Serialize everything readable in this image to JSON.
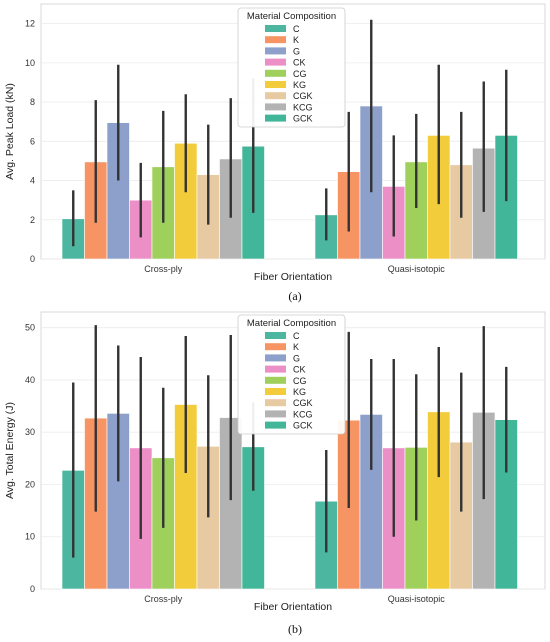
{
  "chart_data": [
    {
      "type": "bar",
      "panel_label": "(a)",
      "xlabel": "Fiber Orientation",
      "ylabel": "Avg. Peak Load (kN)",
      "ylim": [
        0,
        13
      ],
      "yticks": [
        0,
        2,
        4,
        6,
        8,
        10,
        12
      ],
      "grid": "horizontal",
      "legend_title": "Material Composition",
      "legend_position": "top-center",
      "categories": [
        "Cross-ply",
        "Quasi-isotopic"
      ],
      "series": [
        {
          "name": "C",
          "color": "#4DB6A0",
          "values": [
            2.05,
            2.25
          ],
          "error_low": [
            0.65,
            0.95
          ],
          "error_high": [
            3.5,
            3.6
          ]
        },
        {
          "name": "K",
          "color": "#F79464",
          "values": [
            4.95,
            4.45
          ],
          "error_low": [
            1.85,
            1.4
          ],
          "error_high": [
            8.1,
            7.5
          ]
        },
        {
          "name": "G",
          "color": "#8DA0CB",
          "values": [
            6.95,
            7.8
          ],
          "error_low": [
            4.0,
            3.4
          ],
          "error_high": [
            9.9,
            12.2
          ]
        },
        {
          "name": "CK",
          "color": "#EC8FC7",
          "values": [
            3.0,
            3.7
          ],
          "error_low": [
            1.1,
            1.15
          ],
          "error_high": [
            4.9,
            6.3
          ]
        },
        {
          "name": "CG",
          "color": "#9FD05B",
          "values": [
            4.7,
            4.95
          ],
          "error_low": [
            1.85,
            2.6
          ],
          "error_high": [
            7.55,
            7.4
          ]
        },
        {
          "name": "KG",
          "color": "#F2CC3A",
          "values": [
            5.9,
            6.3
          ],
          "error_low": [
            3.4,
            2.8
          ],
          "error_high": [
            8.4,
            9.9
          ]
        },
        {
          "name": "CGK",
          "color": "#E7C9A2",
          "values": [
            4.3,
            4.8
          ],
          "error_low": [
            1.75,
            2.1
          ],
          "error_high": [
            6.85,
            7.5
          ]
        },
        {
          "name": "KCG",
          "color": "#B3B3B3",
          "values": [
            5.1,
            5.65
          ],
          "error_low": [
            2.1,
            2.4
          ],
          "error_high": [
            8.2,
            9.05
          ]
        },
        {
          "name": "GCK",
          "color": "#42B698",
          "values": [
            5.75,
            6.3
          ],
          "error_low": [
            2.35,
            2.95
          ],
          "error_high": [
            9.2,
            9.65
          ]
        }
      ]
    },
    {
      "type": "bar",
      "panel_label": "(b)",
      "xlabel": "Fiber Orientation",
      "ylabel": "Avg. Total Energy (J)",
      "ylim": [
        0,
        53
      ],
      "yticks": [
        0,
        10,
        20,
        30,
        40,
        50
      ],
      "grid": "horizontal",
      "legend_title": "Material Composition",
      "legend_position": "top-center",
      "categories": [
        "Cross-ply",
        "Quasi-isotopic"
      ],
      "series": [
        {
          "name": "C",
          "color": "#4DB6A0",
          "values": [
            22.7,
            16.8
          ],
          "error_low": [
            6.0,
            7.0
          ],
          "error_high": [
            39.5,
            26.6
          ]
        },
        {
          "name": "K",
          "color": "#F79464",
          "values": [
            32.7,
            32.3
          ],
          "error_low": [
            14.8,
            15.5
          ],
          "error_high": [
            50.5,
            49.2
          ]
        },
        {
          "name": "G",
          "color": "#8DA0CB",
          "values": [
            33.6,
            33.4
          ],
          "error_low": [
            20.6,
            22.8
          ],
          "error_high": [
            46.6,
            44.0
          ]
        },
        {
          "name": "CK",
          "color": "#EC8FC7",
          "values": [
            27.0,
            27.0
          ],
          "error_low": [
            9.6,
            10.0
          ],
          "error_high": [
            44.4,
            44.0
          ]
        },
        {
          "name": "CG",
          "color": "#9FD05B",
          "values": [
            25.1,
            27.1
          ],
          "error_low": [
            11.7,
            13.1
          ],
          "error_high": [
            38.5,
            41.1
          ]
        },
        {
          "name": "KG",
          "color": "#F2CC3A",
          "values": [
            35.3,
            33.9
          ],
          "error_low": [
            22.2,
            21.4
          ],
          "error_high": [
            48.4,
            46.3
          ]
        },
        {
          "name": "CGK",
          "color": "#E7C9A2",
          "values": [
            27.3,
            28.1
          ],
          "error_low": [
            13.7,
            14.8
          ],
          "error_high": [
            40.9,
            41.4
          ]
        },
        {
          "name": "KCG",
          "color": "#B3B3B3",
          "values": [
            32.8,
            33.8
          ],
          "error_low": [
            17.0,
            17.2
          ],
          "error_high": [
            48.6,
            50.3
          ]
        },
        {
          "name": "GCK",
          "color": "#42B698",
          "values": [
            27.2,
            32.4
          ],
          "error_low": [
            18.8,
            22.3
          ],
          "error_high": [
            35.7,
            42.5
          ]
        }
      ]
    }
  ]
}
